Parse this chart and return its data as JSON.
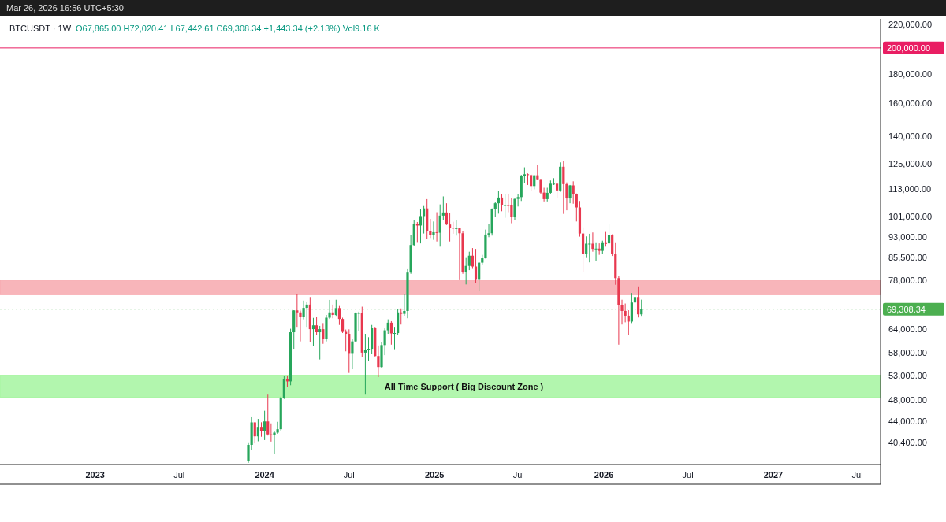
{
  "chart_data": {
    "type": "candlestick",
    "title": "BTCUSDT · 1W",
    "annotations": [
      "O67,865.00 H72,020.41 L67,442.61 C69,308.34 +1,443.34 (+2.13%) Vol9.16 K",
      "Mar 26, 2026 16:56 UTC+5:30"
    ],
    "x": [
      "2023-11-27",
      "2023-12-04",
      "2023-12-11",
      "2023-12-18",
      "2023-12-25",
      "2024-01-01",
      "2024-01-08",
      "2024-01-15",
      "2024-01-22",
      "2024-01-29",
      "2024-02-05",
      "2024-02-12",
      "2024-02-19",
      "2024-02-26",
      "2024-03-04",
      "2024-03-11",
      "2024-03-18",
      "2024-03-25",
      "2024-04-01",
      "2024-04-08",
      "2024-04-15",
      "2024-04-22",
      "2024-04-29",
      "2024-05-06",
      "2024-05-13",
      "2024-05-20",
      "2024-05-27",
      "2024-06-03",
      "2024-06-10",
      "2024-06-17",
      "2024-06-24",
      "2024-07-01",
      "2024-07-08",
      "2024-07-15",
      "2024-07-22",
      "2024-07-29",
      "2024-08-05",
      "2024-08-12",
      "2024-08-19",
      "2024-08-26",
      "2024-09-02",
      "2024-09-09",
      "2024-09-16",
      "2024-09-23",
      "2024-09-30",
      "2024-10-07",
      "2024-10-14",
      "2024-10-21",
      "2024-10-28",
      "2024-11-04",
      "2024-11-11",
      "2024-11-18",
      "2024-11-25",
      "2024-12-02",
      "2024-12-09",
      "2024-12-16",
      "2024-12-23",
      "2024-12-30",
      "2025-01-06",
      "2025-01-13",
      "2025-01-20",
      "2025-01-27",
      "2025-02-03",
      "2025-02-10",
      "2025-02-17",
      "2025-02-24",
      "2025-03-03",
      "2025-03-10",
      "2025-03-17",
      "2025-03-24",
      "2025-03-31",
      "2025-04-07",
      "2025-04-14",
      "2025-04-21",
      "2025-04-28",
      "2025-05-05",
      "2025-05-12",
      "2025-05-19",
      "2025-05-26",
      "2025-06-02",
      "2025-06-09",
      "2025-06-16",
      "2025-06-23",
      "2025-06-30",
      "2025-07-07",
      "2025-07-14",
      "2025-07-21",
      "2025-07-28",
      "2025-08-04",
      "2025-08-11",
      "2025-08-18",
      "2025-08-25",
      "2025-09-01",
      "2025-09-08",
      "2025-09-15",
      "2025-09-22",
      "2025-09-29",
      "2025-10-06",
      "2025-10-13",
      "2025-10-20",
      "2025-10-27",
      "2025-11-03",
      "2025-11-10",
      "2025-11-17",
      "2025-11-24",
      "2025-12-01",
      "2025-12-08",
      "2025-12-15",
      "2025-12-22",
      "2025-12-29",
      "2026-01-05",
      "2026-01-12",
      "2026-01-19",
      "2026-01-26",
      "2026-02-02",
      "2026-02-09",
      "2026-02-16",
      "2026-02-23",
      "2026-03-02",
      "2026-03-09",
      "2026-03-16",
      "2026-03-23"
    ],
    "ohlc": [
      [
        37450,
        40250,
        37150,
        39970
      ],
      [
        39970,
        44700,
        39200,
        43780
      ],
      [
        43780,
        43800,
        40200,
        41370
      ],
      [
        41370,
        44400,
        40550,
        42990
      ],
      [
        42990,
        43800,
        41300,
        42280
      ],
      [
        42280,
        45900,
        40750,
        43950
      ],
      [
        43950,
        49000,
        41500,
        41700
      ],
      [
        41700,
        43600,
        40500,
        41600
      ],
      [
        41600,
        42250,
        38550,
        42000
      ],
      [
        42000,
        43880,
        41800,
        42580
      ],
      [
        42580,
        48600,
        42250,
        48300
      ],
      [
        48300,
        52800,
        48150,
        52100
      ],
      [
        52100,
        52950,
        50600,
        51700
      ],
      [
        51700,
        64000,
        50900,
        63100
      ],
      [
        63100,
        69000,
        59000,
        68950
      ],
      [
        68950,
        73800,
        64500,
        68400
      ],
      [
        68400,
        68900,
        60800,
        67200
      ],
      [
        67200,
        71750,
        66500,
        69650
      ],
      [
        69650,
        71300,
        64500,
        70600
      ],
      [
        70600,
        72800,
        60700,
        63900
      ],
      [
        63900,
        66900,
        59600,
        64900
      ],
      [
        64900,
        67200,
        62400,
        63100
      ],
      [
        63100,
        64750,
        56500,
        63900
      ],
      [
        63900,
        65500,
        60200,
        61500
      ],
      [
        61500,
        67700,
        60800,
        66950
      ],
      [
        66950,
        71950,
        66600,
        68400
      ],
      [
        68400,
        70600,
        66800,
        67700
      ],
      [
        67700,
        72000,
        67450,
        69600
      ],
      [
        69600,
        70200,
        65000,
        66600
      ],
      [
        66600,
        66950,
        62900,
        63200
      ],
      [
        63200,
        63800,
        58400,
        62700
      ],
      [
        62700,
        63850,
        53500,
        58000
      ],
      [
        58000,
        61400,
        54300,
        60800
      ],
      [
        60800,
        68400,
        60600,
        68200
      ],
      [
        68200,
        68600,
        63500,
        68250
      ],
      [
        68250,
        70000,
        57100,
        58100
      ],
      [
        58100,
        62700,
        49000,
        58700
      ],
      [
        58700,
        61850,
        56100,
        59000
      ],
      [
        59000,
        65000,
        57800,
        64200
      ],
      [
        64200,
        64500,
        57200,
        57300
      ],
      [
        57300,
        59800,
        52600,
        54800
      ],
      [
        54800,
        60600,
        54600,
        59900
      ],
      [
        59900,
        64100,
        57500,
        63600
      ],
      [
        63600,
        66500,
        62700,
        65600
      ],
      [
        65600,
        66000,
        60000,
        62800
      ],
      [
        62800,
        64500,
        58900,
        62900
      ],
      [
        62900,
        69400,
        62500,
        68400
      ],
      [
        68400,
        69500,
        65100,
        68000
      ],
      [
        68000,
        73600,
        67500,
        68800
      ],
      [
        68800,
        81500,
        66800,
        80400
      ],
      [
        80400,
        93500,
        80000,
        89900
      ],
      [
        89900,
        99600,
        89400,
        97900
      ],
      [
        97900,
        98700,
        90700,
        97300
      ],
      [
        97300,
        104000,
        90500,
        101100
      ],
      [
        101100,
        105300,
        94200,
        104300
      ],
      [
        104300,
        108300,
        92200,
        95200
      ],
      [
        95200,
        99950,
        92500,
        93700
      ],
      [
        93700,
        98900,
        91800,
        94700
      ],
      [
        94700,
        102700,
        91200,
        94500
      ],
      [
        94500,
        106000,
        89300,
        101300
      ],
      [
        101300,
        109500,
        99500,
        102600
      ],
      [
        102600,
        106500,
        97500,
        97700
      ],
      [
        97700,
        102500,
        91200,
        96500
      ],
      [
        96500,
        98800,
        94100,
        96100
      ],
      [
        96100,
        99500,
        93400,
        96250
      ],
      [
        96250,
        96500,
        78200,
        94300
      ],
      [
        94300,
        95000,
        80000,
        80700
      ],
      [
        80700,
        85300,
        76600,
        82600
      ],
      [
        82600,
        87500,
        81200,
        86100
      ],
      [
        86100,
        88800,
        81600,
        82400
      ],
      [
        82400,
        88500,
        77100,
        78300
      ],
      [
        78300,
        83800,
        74500,
        83700
      ],
      [
        83700,
        86400,
        83100,
        85200
      ],
      [
        85200,
        95700,
        85100,
        93800
      ],
      [
        93800,
        97900,
        92800,
        94300
      ],
      [
        94300,
        104300,
        93400,
        104100
      ],
      [
        104100,
        107100,
        100700,
        106500
      ],
      [
        106500,
        111900,
        102100,
        109000
      ],
      [
        109000,
        110400,
        103100,
        105700
      ],
      [
        105700,
        110600,
        100400,
        105700
      ],
      [
        105700,
        110500,
        102700,
        105600
      ],
      [
        105600,
        108900,
        98200,
        100900
      ],
      [
        100900,
        108500,
        99600,
        108400
      ],
      [
        108400,
        110500,
        105100,
        109200
      ],
      [
        109200,
        119500,
        107500,
        119100
      ],
      [
        119100,
        123200,
        115700,
        119800
      ],
      [
        119800,
        120200,
        114700,
        119400
      ],
      [
        119400,
        119800,
        112000,
        114200
      ],
      [
        114200,
        119300,
        112700,
        119300
      ],
      [
        119300,
        124500,
        117200,
        117400
      ],
      [
        117400,
        117600,
        110700,
        111200
      ],
      [
        111200,
        113400,
        107300,
        108300
      ],
      [
        108300,
        113400,
        107300,
        111100
      ],
      [
        111100,
        116800,
        110600,
        115300
      ],
      [
        115300,
        117900,
        114700,
        115300
      ],
      [
        115300,
        115400,
        108600,
        112200
      ],
      [
        112200,
        125700,
        111600,
        123500
      ],
      [
        123500,
        126200,
        102000,
        115100
      ],
      [
        115100,
        115900,
        103500,
        108600
      ],
      [
        108600,
        114700,
        106500,
        114500
      ],
      [
        114500,
        116400,
        106300,
        110600
      ],
      [
        110600,
        110800,
        98900,
        104700
      ],
      [
        104700,
        107500,
        93000,
        94200
      ],
      [
        94200,
        96600,
        80500,
        86800
      ],
      [
        86800,
        93100,
        85300,
        90400
      ],
      [
        90400,
        94100,
        83800,
        90400
      ],
      [
        90400,
        94600,
        87500,
        88500
      ],
      [
        88500,
        90600,
        84400,
        88600
      ],
      [
        88600,
        90500,
        86400,
        87800
      ],
      [
        87800,
        91500,
        86600,
        90600
      ],
      [
        90600,
        94800,
        89300,
        90500
      ],
      [
        90500,
        97900,
        90000,
        93600
      ],
      [
        93600,
        93900,
        86000,
        86600
      ],
      [
        86600,
        90600,
        76500,
        78600
      ],
      [
        78600,
        79300,
        60000,
        70400
      ],
      [
        70400,
        72000,
        65100,
        68800
      ],
      [
        68800,
        70900,
        65700,
        67500
      ],
      [
        67500,
        69000,
        62500,
        65900
      ],
      [
        65900,
        74000,
        65500,
        71200
      ],
      [
        71200,
        73500,
        69000,
        72800
      ],
      [
        72800,
        76000,
        67000,
        67865
      ],
      [
        67865,
        72020.41,
        67442.61,
        69308.34
      ]
    ],
    "colors": [
      "#26a65b",
      "#26a65b",
      "#e8384f",
      "#26a65b",
      "#e8384f",
      "#26a65b",
      "#e8384f",
      "#e8384f",
      "#26a65b",
      "#26a65b",
      "#26a65b",
      "#26a65b",
      "#e8384f",
      "#26a65b",
      "#26a65b",
      "#e8384f",
      "#e8384f",
      "#26a65b",
      "#26a65b",
      "#e8384f",
      "#26a65b",
      "#e8384f",
      "#26a65b",
      "#e8384f",
      "#26a65b",
      "#26a65b",
      "#e8384f",
      "#26a65b",
      "#e8384f",
      "#e8384f",
      "#e8384f",
      "#e8384f",
      "#26a65b",
      "#26a65b",
      "#26a65b",
      "#e8384f",
      "#26a65b",
      "#26a65b",
      "#26a65b",
      "#e8384f",
      "#e8384f",
      "#26a65b",
      "#26a65b",
      "#26a65b",
      "#e8384f",
      "#26a65b",
      "#26a65b",
      "#e8384f",
      "#26a65b",
      "#26a65b",
      "#26a65b",
      "#26a65b",
      "#e8384f",
      "#26a65b",
      "#26a65b",
      "#e8384f",
      "#e8384f",
      "#26a65b",
      "#e8384f",
      "#26a65b",
      "#26a65b",
      "#e8384f",
      "#e8384f",
      "#e8384f",
      "#26a65b",
      "#e8384f",
      "#e8384f",
      "#26a65b",
      "#26a65b",
      "#e8384f",
      "#e8384f",
      "#26a65b",
      "#26a65b",
      "#26a65b",
      "#26a65b",
      "#26a65b",
      "#26a65b",
      "#26a65b",
      "#e8384f",
      "#26a65b",
      "#e8384f",
      "#e8384f",
      "#26a65b",
      "#26a65b",
      "#26a65b",
      "#26a65b",
      "#e8384f",
      "#e8384f",
      "#26a65b",
      "#e8384f",
      "#e8384f",
      "#e8384f",
      "#26a65b",
      "#26a65b",
      "#26a65b",
      "#e8384f",
      "#26a65b",
      "#e8384f",
      "#e8384f",
      "#26a65b",
      "#e8384f",
      "#e8384f",
      "#e8384f",
      "#e8384f",
      "#26a65b",
      "#26a65b",
      "#e8384f",
      "#26a65b",
      "#e8384f",
      "#26a65b",
      "#e8384f",
      "#26a65b",
      "#e8384f",
      "#e8384f",
      "#e8384f",
      "#e8384f",
      "#e8384f",
      "#e8384f",
      "#26a65b",
      "#26a65b",
      "#e8384f",
      "#26a65b"
    ],
    "log": true,
    "xlim": [
      "2022-06-10",
      "2027-08-20"
    ],
    "xticks": [
      {
        "value": "2023-01-01",
        "label": "2023"
      },
      {
        "value": "2023-07-01",
        "label": "Jul"
      },
      {
        "value": "2024-01-01",
        "label": "2024"
      },
      {
        "value": "2024-07-01",
        "label": "Jul"
      },
      {
        "value": "2025-01-01",
        "label": "2025"
      },
      {
        "value": "2025-07-01",
        "label": "Jul"
      },
      {
        "value": "2026-01-01",
        "label": "2026"
      },
      {
        "value": "2026-07-01",
        "label": "Jul"
      },
      {
        "value": "2027-01-01",
        "label": "2027"
      },
      {
        "value": "2027-07-01",
        "label": "Jul"
      }
    ],
    "ylim": [
      36900,
      225000
    ],
    "yticks": [
      {
        "value": 40400,
        "label": "40,400.00"
      },
      {
        "value": 44000,
        "label": "44,000.00"
      },
      {
        "value": 48000,
        "label": "48,000.00"
      },
      {
        "value": 53000,
        "label": "53,000.00"
      },
      {
        "value": 58000,
        "label": "58,000.00"
      },
      {
        "value": 64000,
        "label": "64,000.00"
      },
      {
        "value": 78000,
        "label": "78,000.00"
      },
      {
        "value": 85500,
        "label": "85,500.00"
      },
      {
        "value": 93000,
        "label": "93,000.00"
      },
      {
        "value": 101000,
        "label": "101,000.00"
      },
      {
        "value": 113000,
        "label": "113,000.00"
      },
      {
        "value": 125000,
        "label": "125,000.00"
      },
      {
        "value": 140000,
        "label": "140,000.00"
      },
      {
        "value": 160000,
        "label": "160,000.00"
      },
      {
        "value": 180000,
        "label": "180,000.00"
      },
      {
        "value": 220000,
        "label": "220,000.00"
      }
    ],
    "grid": false,
    "ref_lines": [
      {
        "axis": "y",
        "value": 200000,
        "label": "200,000.00",
        "color": "#e91e63",
        "line_style": "solid"
      },
      {
        "axis": "y",
        "value": 69308.34,
        "label": "69,308.34",
        "color": "#4caf50",
        "line_style": "dotted"
      }
    ],
    "bands": [
      {
        "axis": "y",
        "from": 48500,
        "to": 53000,
        "label": "All Time Support ( Big Discount Zone )",
        "color": "#a5f5a0"
      },
      {
        "axis": "y",
        "from": 73500,
        "to": 78000,
        "color": "#f7a8ae"
      }
    ]
  }
}
